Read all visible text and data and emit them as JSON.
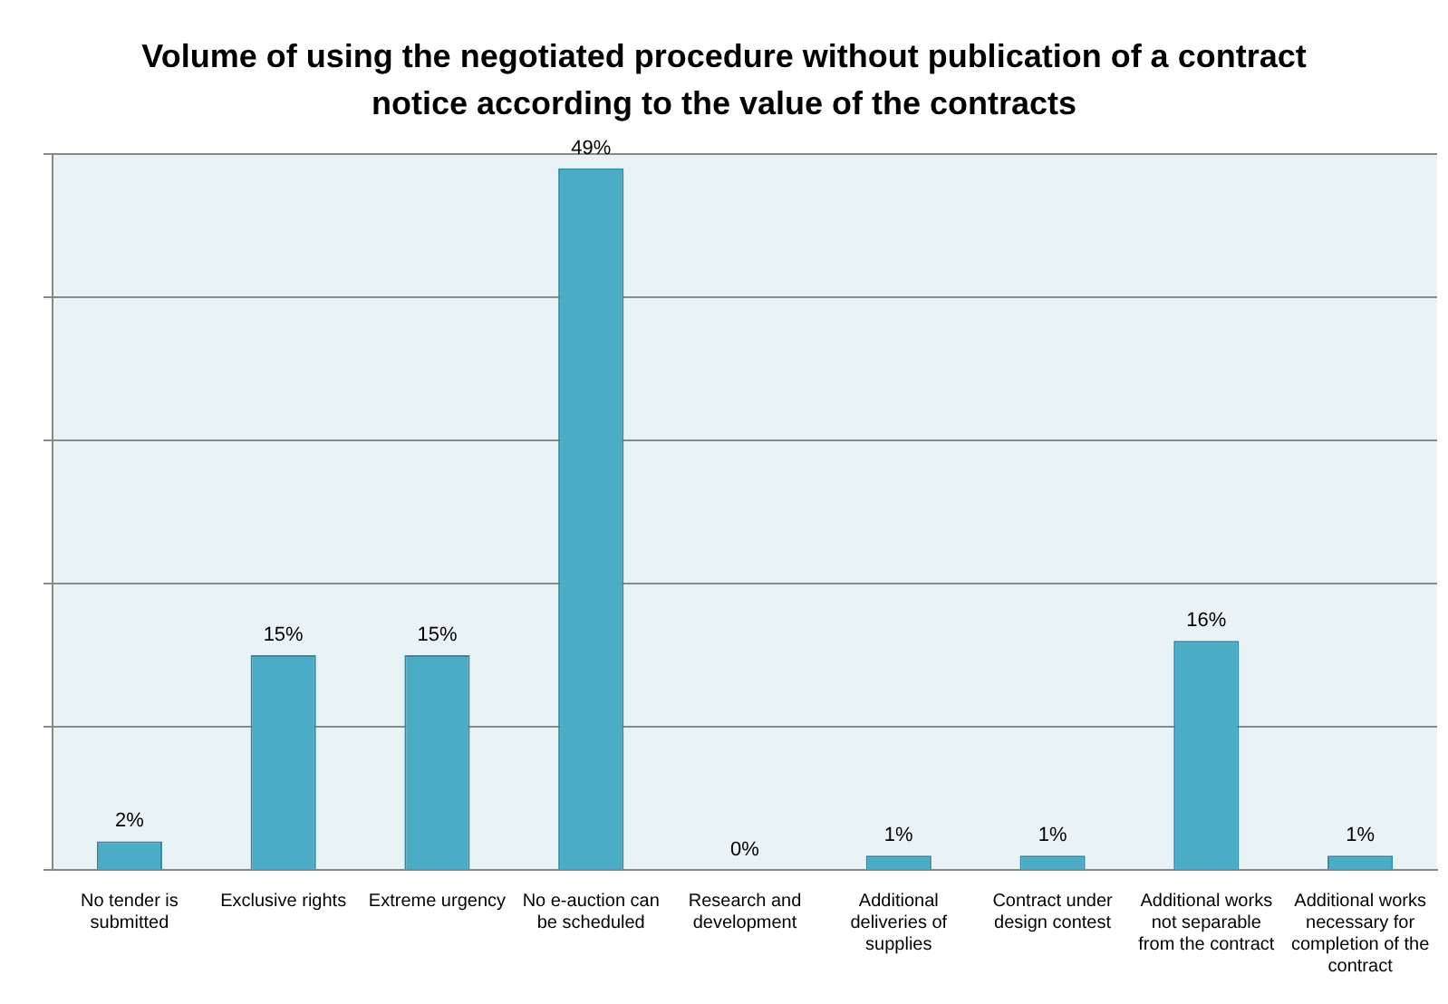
{
  "chart_data": {
    "type": "bar",
    "title": "Volume of using the negotiated procedure without publication of a contract notice according to the value of the contracts",
    "categories": [
      "No tender is submitted",
      "Exclusive rights",
      "Extreme urgency",
      "No e-auction can be scheduled",
      "Research and development",
      "Additional deliveries of supplies",
      "Contract under design contest",
      "Additional works not separable from the contract",
      "Additional works necessary for completion of the contract"
    ],
    "values": [
      2,
      15,
      15,
      49,
      0,
      1,
      1,
      16,
      1
    ],
    "color": "#4bacc6",
    "value_labels": [
      "2%",
      "15%",
      "15%",
      "49%",
      "0%",
      "1%",
      "1%",
      "16%",
      "1%"
    ],
    "grid": "y",
    "tick_labels": "x"
  }
}
